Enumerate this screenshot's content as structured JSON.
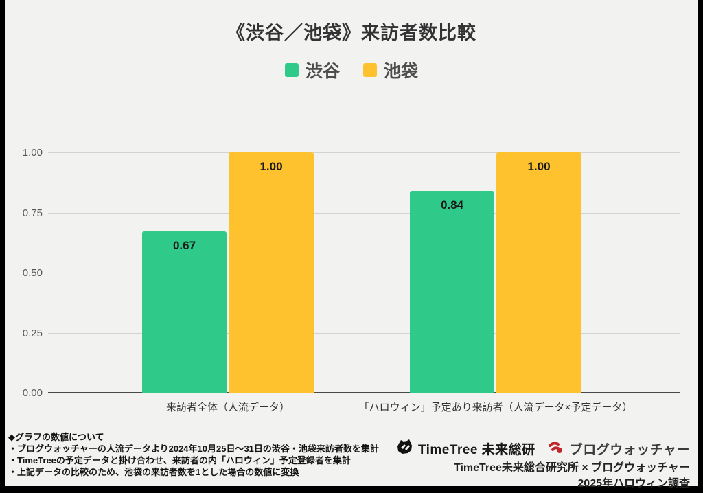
{
  "title": "《渋谷／池袋》来訪者数比較",
  "chart_data": {
    "type": "bar",
    "title": "《渋谷／池袋》来訪者数比較",
    "categories": [
      "来訪者全体（人流データ）",
      "「ハロウィン」予定あり来訪者（人流データ×予定データ）"
    ],
    "series": [
      {
        "name": "渋谷",
        "color": "#2fc98a",
        "values": [
          0.67,
          0.84
        ],
        "labels": [
          "0.67",
          "0.84"
        ]
      },
      {
        "name": "池袋",
        "color": "#fec22f",
        "values": [
          1.0,
          1.0
        ],
        "labels": [
          "1.00",
          "1.00"
        ]
      }
    ],
    "ylim": [
      0,
      1.0
    ],
    "ytick_labels": [
      "1.00",
      "0.75",
      "0.50",
      "0.25",
      "0.00"
    ],
    "grid": "horizontal",
    "legend_position": "top"
  },
  "footnotes": {
    "heading": "◆グラフの数値について",
    "line1": "・ブログウォッチャーの人流データより2024年10月25日～31日の渋谷・池袋来訪者数を集計",
    "line2": "・TimeTreeの予定データと掛け合わせ、来訪者の内「ハロウィン」予定登録者を集計",
    "line3": "・上記データの比較のため、池袋の来訪者数を1とした場合の数値に変換"
  },
  "attribution": {
    "timetree_logo_text": "TimeTree 未来総研",
    "blogwatcher_logo_text": "ブログウォッチャー",
    "blogwatcher_color": "#c0272d",
    "line1": "TimeTree未来総合研究所 × ブログウォッチャー",
    "line2": "2025年ハロウィン調査"
  }
}
